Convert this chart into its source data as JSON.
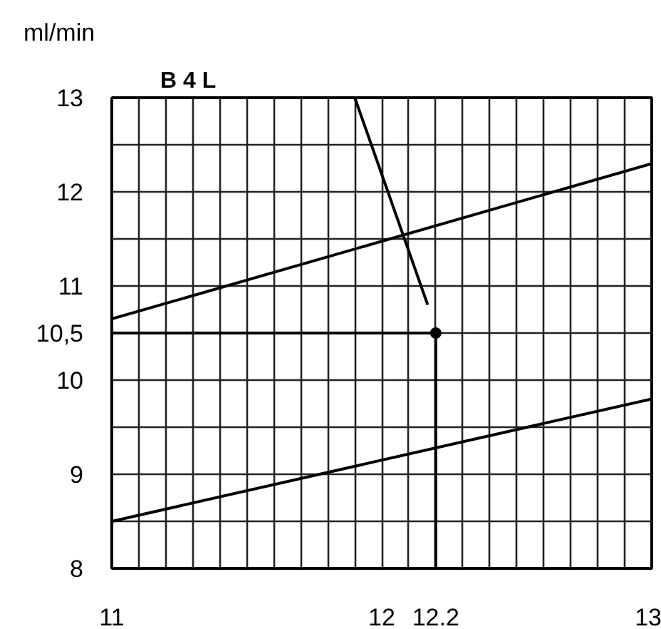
{
  "chart_data": {
    "type": "line",
    "title": "B 4 L",
    "ylabel": "ml/min",
    "series": [
      {
        "color": "#000000",
        "x": [
          11,
          13
        ],
        "values": [
          10.65,
          12.3
        ]
      },
      {
        "color": "#000000",
        "x": [
          11,
          13
        ],
        "values": [
          8.5,
          9.8
        ]
      },
      {
        "color": "#000000",
        "x": [
          11,
          12.2
        ],
        "values": [
          10.5,
          10.5
        ]
      },
      {
        "color": "#000000",
        "x": [
          12.2,
          12.2
        ],
        "values": [
          8,
          10.5
        ]
      },
      {
        "color": "#000000",
        "x": [
          11.9,
          12.17
        ],
        "values": [
          13,
          10.8
        ]
      },
      {
        "type": "scatter",
        "color": "#000000",
        "x": [
          12.2
        ],
        "values": [
          10.5
        ]
      }
    ],
    "xlim": [
      11,
      13
    ],
    "ylim": [
      8,
      13
    ],
    "xticks": [
      11,
      12,
      12.2,
      13
    ],
    "yticks": [
      8,
      9,
      10,
      {
        "value": 10.5,
        "label": "10,5"
      },
      11,
      12,
      13
    ],
    "grid": true,
    "line_style": "solid"
  }
}
